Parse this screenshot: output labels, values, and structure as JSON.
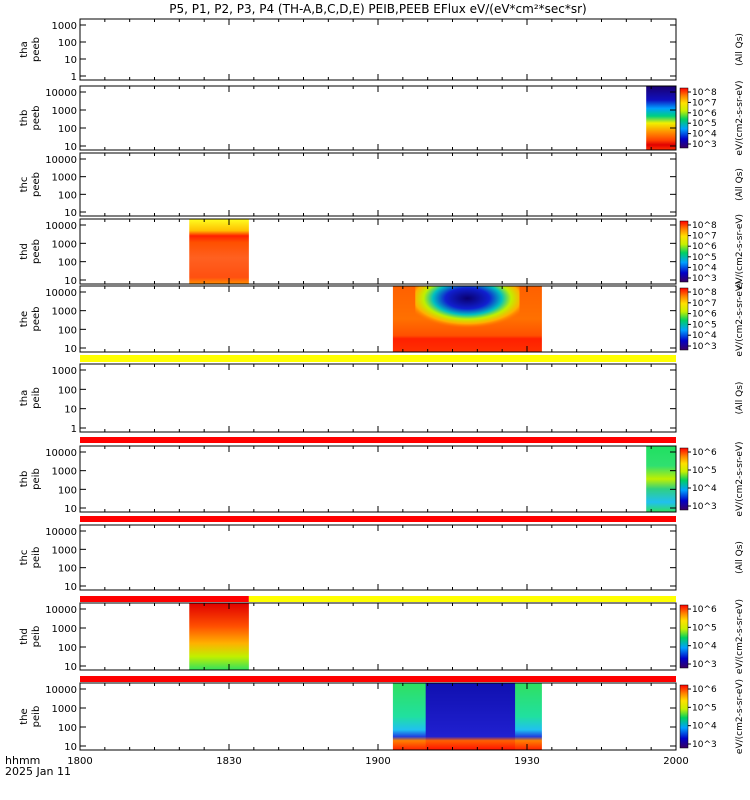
{
  "title": "P5, P1, P2, P3, P4 (TH-A,B,C,D,E) PEIB,PEEB EFlux eV/(eV*cm²*sec*sr)",
  "footer": {
    "time_label": "hhmm",
    "date_label": "2025 Jan 11",
    "x_ticks": [
      "1800",
      "1830",
      "1900",
      "1930",
      "2000"
    ]
  },
  "colorbar_labels": {
    "tha_peeb": "(All Qs)",
    "thb_peeb": "eV/(cm2-s-sr-eV)",
    "thc_peeb": "(All Qs)",
    "thd_peeb": "eV/(cm2-s-sr-eV)",
    "the_peeb": "eV/(cm2-s-sr-eV)",
    "tha_peib": "(All Qs)",
    "thb_peib": "eV/(cm2-s-sr-eV)",
    "thc_peib": "(All Qs)",
    "thd_peib": "eV/(cm2-s-sr-eV)",
    "the_peib": "eV/(cm2-s-sr-eV)"
  },
  "chart_data": [
    {
      "type": "heatmap",
      "probe": "tha",
      "product": "peeb",
      "y_ticks": [
        "1000",
        "100",
        "10",
        "1"
      ],
      "y_scale": "log",
      "data": "none",
      "x_range": [
        "1800",
        "2000"
      ]
    },
    {
      "type": "heatmap",
      "probe": "thb",
      "product": "peeb",
      "y_ticks": [
        "10000",
        "1000",
        "100",
        "10"
      ],
      "y_scale": "log",
      "colorbar_ticks": [
        "10^8",
        "10^7",
        "10^6",
        "10^5",
        "10^4",
        "10^3"
      ],
      "blocks": [
        {
          "x_start": "1954",
          "x_end": "2000",
          "pattern": "dark blue top, green/yellow middle, red bottom"
        }
      ]
    },
    {
      "type": "heatmap",
      "probe": "thc",
      "product": "peeb",
      "y_ticks": [
        "10000",
        "1000",
        "100",
        "10"
      ],
      "y_scale": "log",
      "data": "none"
    },
    {
      "type": "heatmap",
      "probe": "thd",
      "product": "peeb",
      "y_ticks": [
        "10000",
        "1000",
        "100",
        "10"
      ],
      "y_scale": "log",
      "colorbar_ticks": [
        "10^8",
        "10^7",
        "10^6",
        "10^5",
        "10^4",
        "10^3"
      ],
      "blocks": [
        {
          "x_start": "1822",
          "x_end": "1834",
          "pattern": "yellow top, red band, orange below"
        }
      ]
    },
    {
      "type": "heatmap",
      "probe": "the",
      "product": "peeb",
      "y_ticks": [
        "10000",
        "1000",
        "100",
        "10"
      ],
      "y_scale": "log",
      "colorbar_ticks": [
        "10^8",
        "10^7",
        "10^6",
        "10^5",
        "10^4",
        "10^3"
      ],
      "blocks": [
        {
          "x_start": "1903",
          "x_end": "1933",
          "pattern": "orange/red with blue-purple core centered ~1918"
        }
      ]
    },
    {
      "type": "heatmap",
      "probe": "tha",
      "product": "peib",
      "y_ticks": [
        "1000",
        "100",
        "10",
        "1"
      ],
      "y_scale": "log",
      "data": "none",
      "status_bar_above": "yellow"
    },
    {
      "type": "heatmap",
      "probe": "thb",
      "product": "peib",
      "y_ticks": [
        "10000",
        "1000",
        "100",
        "10"
      ],
      "y_scale": "log",
      "colorbar_ticks": [
        "10^6",
        "10^5",
        "10^4",
        "10^3"
      ],
      "blocks": [
        {
          "x_start": "1954",
          "x_end": "2000",
          "pattern": "green/cyan"
        }
      ],
      "status_bar_above": "red"
    },
    {
      "type": "heatmap",
      "probe": "thc",
      "product": "peib",
      "y_ticks": [
        "10000",
        "1000",
        "100",
        "10"
      ],
      "y_scale": "log",
      "data": "none",
      "status_bar_above": "red"
    },
    {
      "type": "heatmap",
      "probe": "thd",
      "product": "peib",
      "y_ticks": [
        "10000",
        "1000",
        "100",
        "10"
      ],
      "y_scale": "log",
      "colorbar_ticks": [
        "10^6",
        "10^5",
        "10^4",
        "10^3"
      ],
      "blocks": [
        {
          "x_start": "1822",
          "x_end": "1834",
          "pattern": "red top fading to orange, yellow, green bottom"
        }
      ],
      "status_bar_above": "red until ~1834 then yellow"
    },
    {
      "type": "heatmap",
      "probe": "the",
      "product": "peib",
      "y_ticks": [
        "10000",
        "1000",
        "100",
        "10"
      ],
      "y_scale": "log",
      "colorbar_ticks": [
        "10^6",
        "10^5",
        "10^4",
        "10^3"
      ],
      "blocks": [
        {
          "x_start": "1903",
          "x_end": "1933",
          "pattern": "green/cyan with dark blue core, red/orange bottom"
        }
      ],
      "status_bar_above": "red"
    }
  ]
}
